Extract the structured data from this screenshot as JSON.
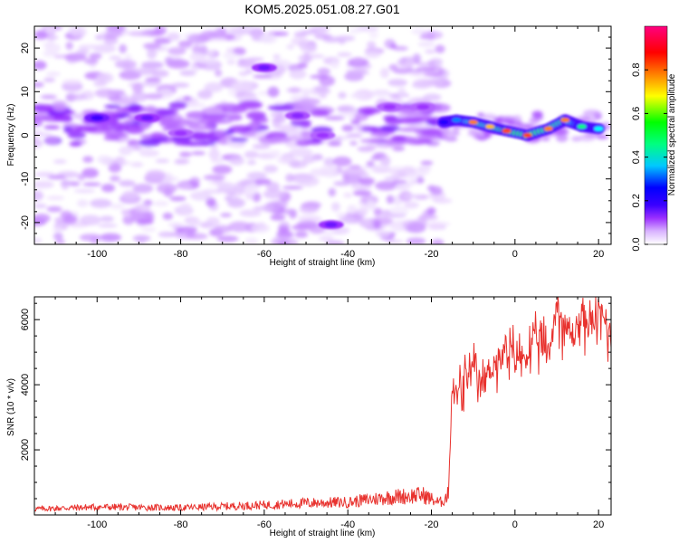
{
  "title": "KOM5.2025.051.08.27.G01",
  "chart_data": [
    {
      "type": "heatmap",
      "title": "",
      "xlabel": "Height of straight line (km)",
      "ylabel": "Frequency (Hz)",
      "xlim": [
        -115,
        23
      ],
      "ylim": [
        -25,
        25
      ],
      "x_ticks": [
        -100,
        -80,
        -60,
        -40,
        -20,
        0,
        20
      ],
      "y_ticks": [
        -20,
        -10,
        0,
        10,
        20
      ],
      "colorbar": {
        "label": "Normalized spectral amplitude",
        "range": [
          0,
          1
        ],
        "ticks": [
          0.0,
          0.2,
          0.4,
          0.6,
          0.8
        ],
        "colors": [
          "#ffffff",
          "#d9b3ff",
          "#9b30ff",
          "#3a00ff",
          "#0000ff",
          "#00ffff",
          "#00ff00",
          "#ffff00",
          "#ff8000",
          "#ff0000",
          "#ff0080"
        ]
      },
      "signal_track": [
        {
          "x": -17,
          "f": 3.0,
          "amp": 0.35
        },
        {
          "x": -14,
          "f": 3.5,
          "amp": 0.45
        },
        {
          "x": -10,
          "f": 3.0,
          "amp": 0.8
        },
        {
          "x": -6,
          "f": 2.0,
          "amp": 0.75
        },
        {
          "x": -2,
          "f": 1.0,
          "amp": 0.85
        },
        {
          "x": 3,
          "f": 0.0,
          "amp": 0.85
        },
        {
          "x": 8,
          "f": 1.5,
          "amp": 0.8
        },
        {
          "x": 12,
          "f": 3.5,
          "amp": 0.8
        },
        {
          "x": 16,
          "f": 2.0,
          "amp": 0.55
        },
        {
          "x": 20,
          "f": 1.5,
          "amp": 0.5
        }
      ],
      "noise_band": [
        {
          "x": -100,
          "f": 4.0,
          "amp": 0.3
        },
        {
          "x": -88,
          "f": 4.0,
          "amp": 0.25
        },
        {
          "x": -80,
          "f": 0.5,
          "amp": 0.2
        },
        {
          "x": -60,
          "f": 15.5,
          "amp": 0.25
        },
        {
          "x": -52,
          "f": 4.5,
          "amp": 0.22
        },
        {
          "x": -46,
          "f": 0.0,
          "amp": 0.2
        },
        {
          "x": -44,
          "f": -20.5,
          "amp": 0.25
        },
        {
          "x": -30,
          "f": 6.5,
          "amp": 0.2
        },
        {
          "x": -22,
          "f": 6.5,
          "amp": 0.2
        }
      ]
    },
    {
      "type": "line",
      "title": "",
      "xlabel": "Height of straight line (km)",
      "ylabel": "SNR (10 * v/v)",
      "xlim": [
        -115,
        23
      ],
      "ylim": [
        0,
        6700
      ],
      "x_ticks": [
        -100,
        -80,
        -60,
        -40,
        -20,
        0,
        20
      ],
      "y_ticks": [
        2000,
        4000,
        6000
      ],
      "series": [
        {
          "color": "#e8322e",
          "x": [
            -115,
            -100,
            -80,
            -60,
            -50,
            -40,
            -30,
            -22,
            -18,
            -16,
            -15,
            -14,
            -12,
            -10,
            -8,
            -6,
            -4,
            -2,
            0,
            2,
            4,
            6,
            8,
            10,
            12,
            14,
            16,
            18,
            20,
            22,
            23
          ],
          "y": [
            150,
            200,
            180,
            250,
            300,
            320,
            450,
            500,
            300,
            500,
            4000,
            3800,
            4200,
            4500,
            4000,
            4600,
            4800,
            5000,
            5100,
            4900,
            5300,
            5500,
            5000,
            6600,
            5800,
            5600,
            6200,
            5900,
            6300,
            6000,
            5500
          ]
        }
      ]
    }
  ]
}
